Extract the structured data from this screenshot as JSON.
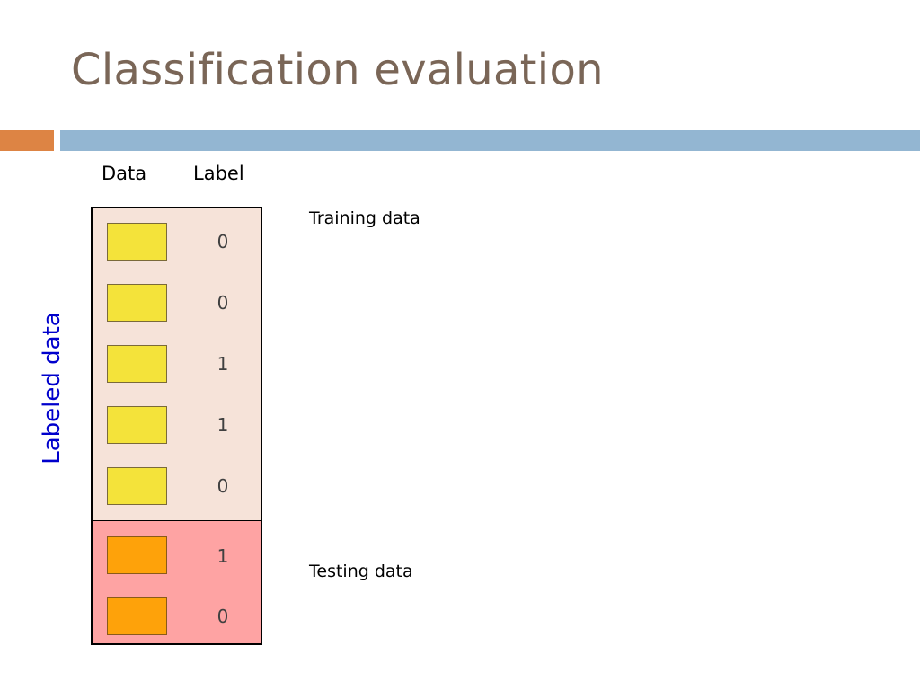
{
  "slide": {
    "title": "Classification evaluation"
  },
  "columns": {
    "data": "Data",
    "label": "Label"
  },
  "vertical_label": "Labeled data",
  "training": {
    "caption": "Training data",
    "labels": [
      "0",
      "0",
      "1",
      "1",
      "0"
    ]
  },
  "testing": {
    "caption": "Testing data",
    "labels": [
      "1",
      "0"
    ]
  },
  "colors": {
    "title": "#7a6657",
    "accent_bar": "#dd8444",
    "header_bar": "#93b6d2",
    "training_bg": "#f6e3d9",
    "testing_bg": "#fea3a3",
    "training_cell": "#f4e33a",
    "testing_cell": "#fea20a",
    "vertical_label": "#0000cc"
  }
}
